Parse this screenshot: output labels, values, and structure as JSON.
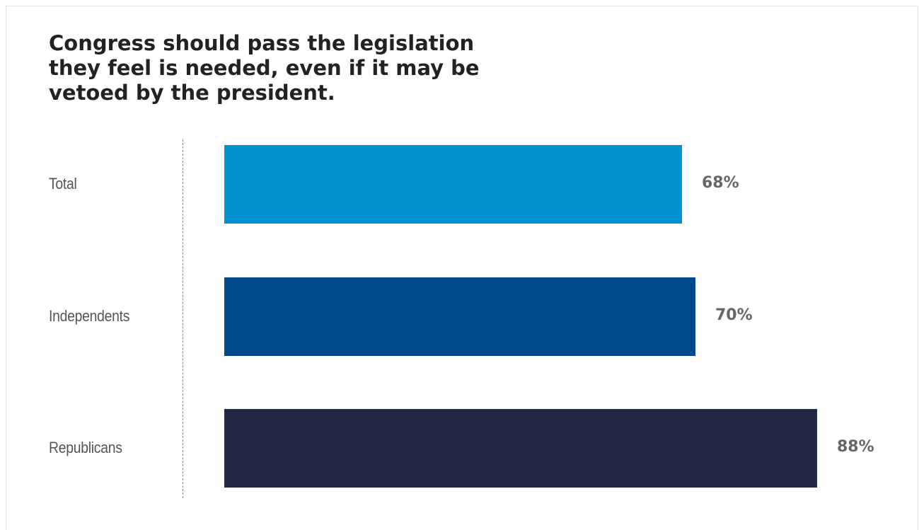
{
  "chart_data": {
    "type": "bar",
    "orientation": "horizontal",
    "title": "Congress should pass the legislation they feel is needed, even if it may be vetoed by the president.",
    "categories": [
      "Total",
      "Independents",
      "Republicans"
    ],
    "values": [
      68,
      70,
      88
    ],
    "value_labels": [
      "68%",
      "70%",
      "88%"
    ],
    "colors": [
      "#0093d0",
      "#004a8c",
      "#202741"
    ],
    "xlim": [
      0,
      100
    ],
    "grid": false,
    "legend": "none"
  }
}
